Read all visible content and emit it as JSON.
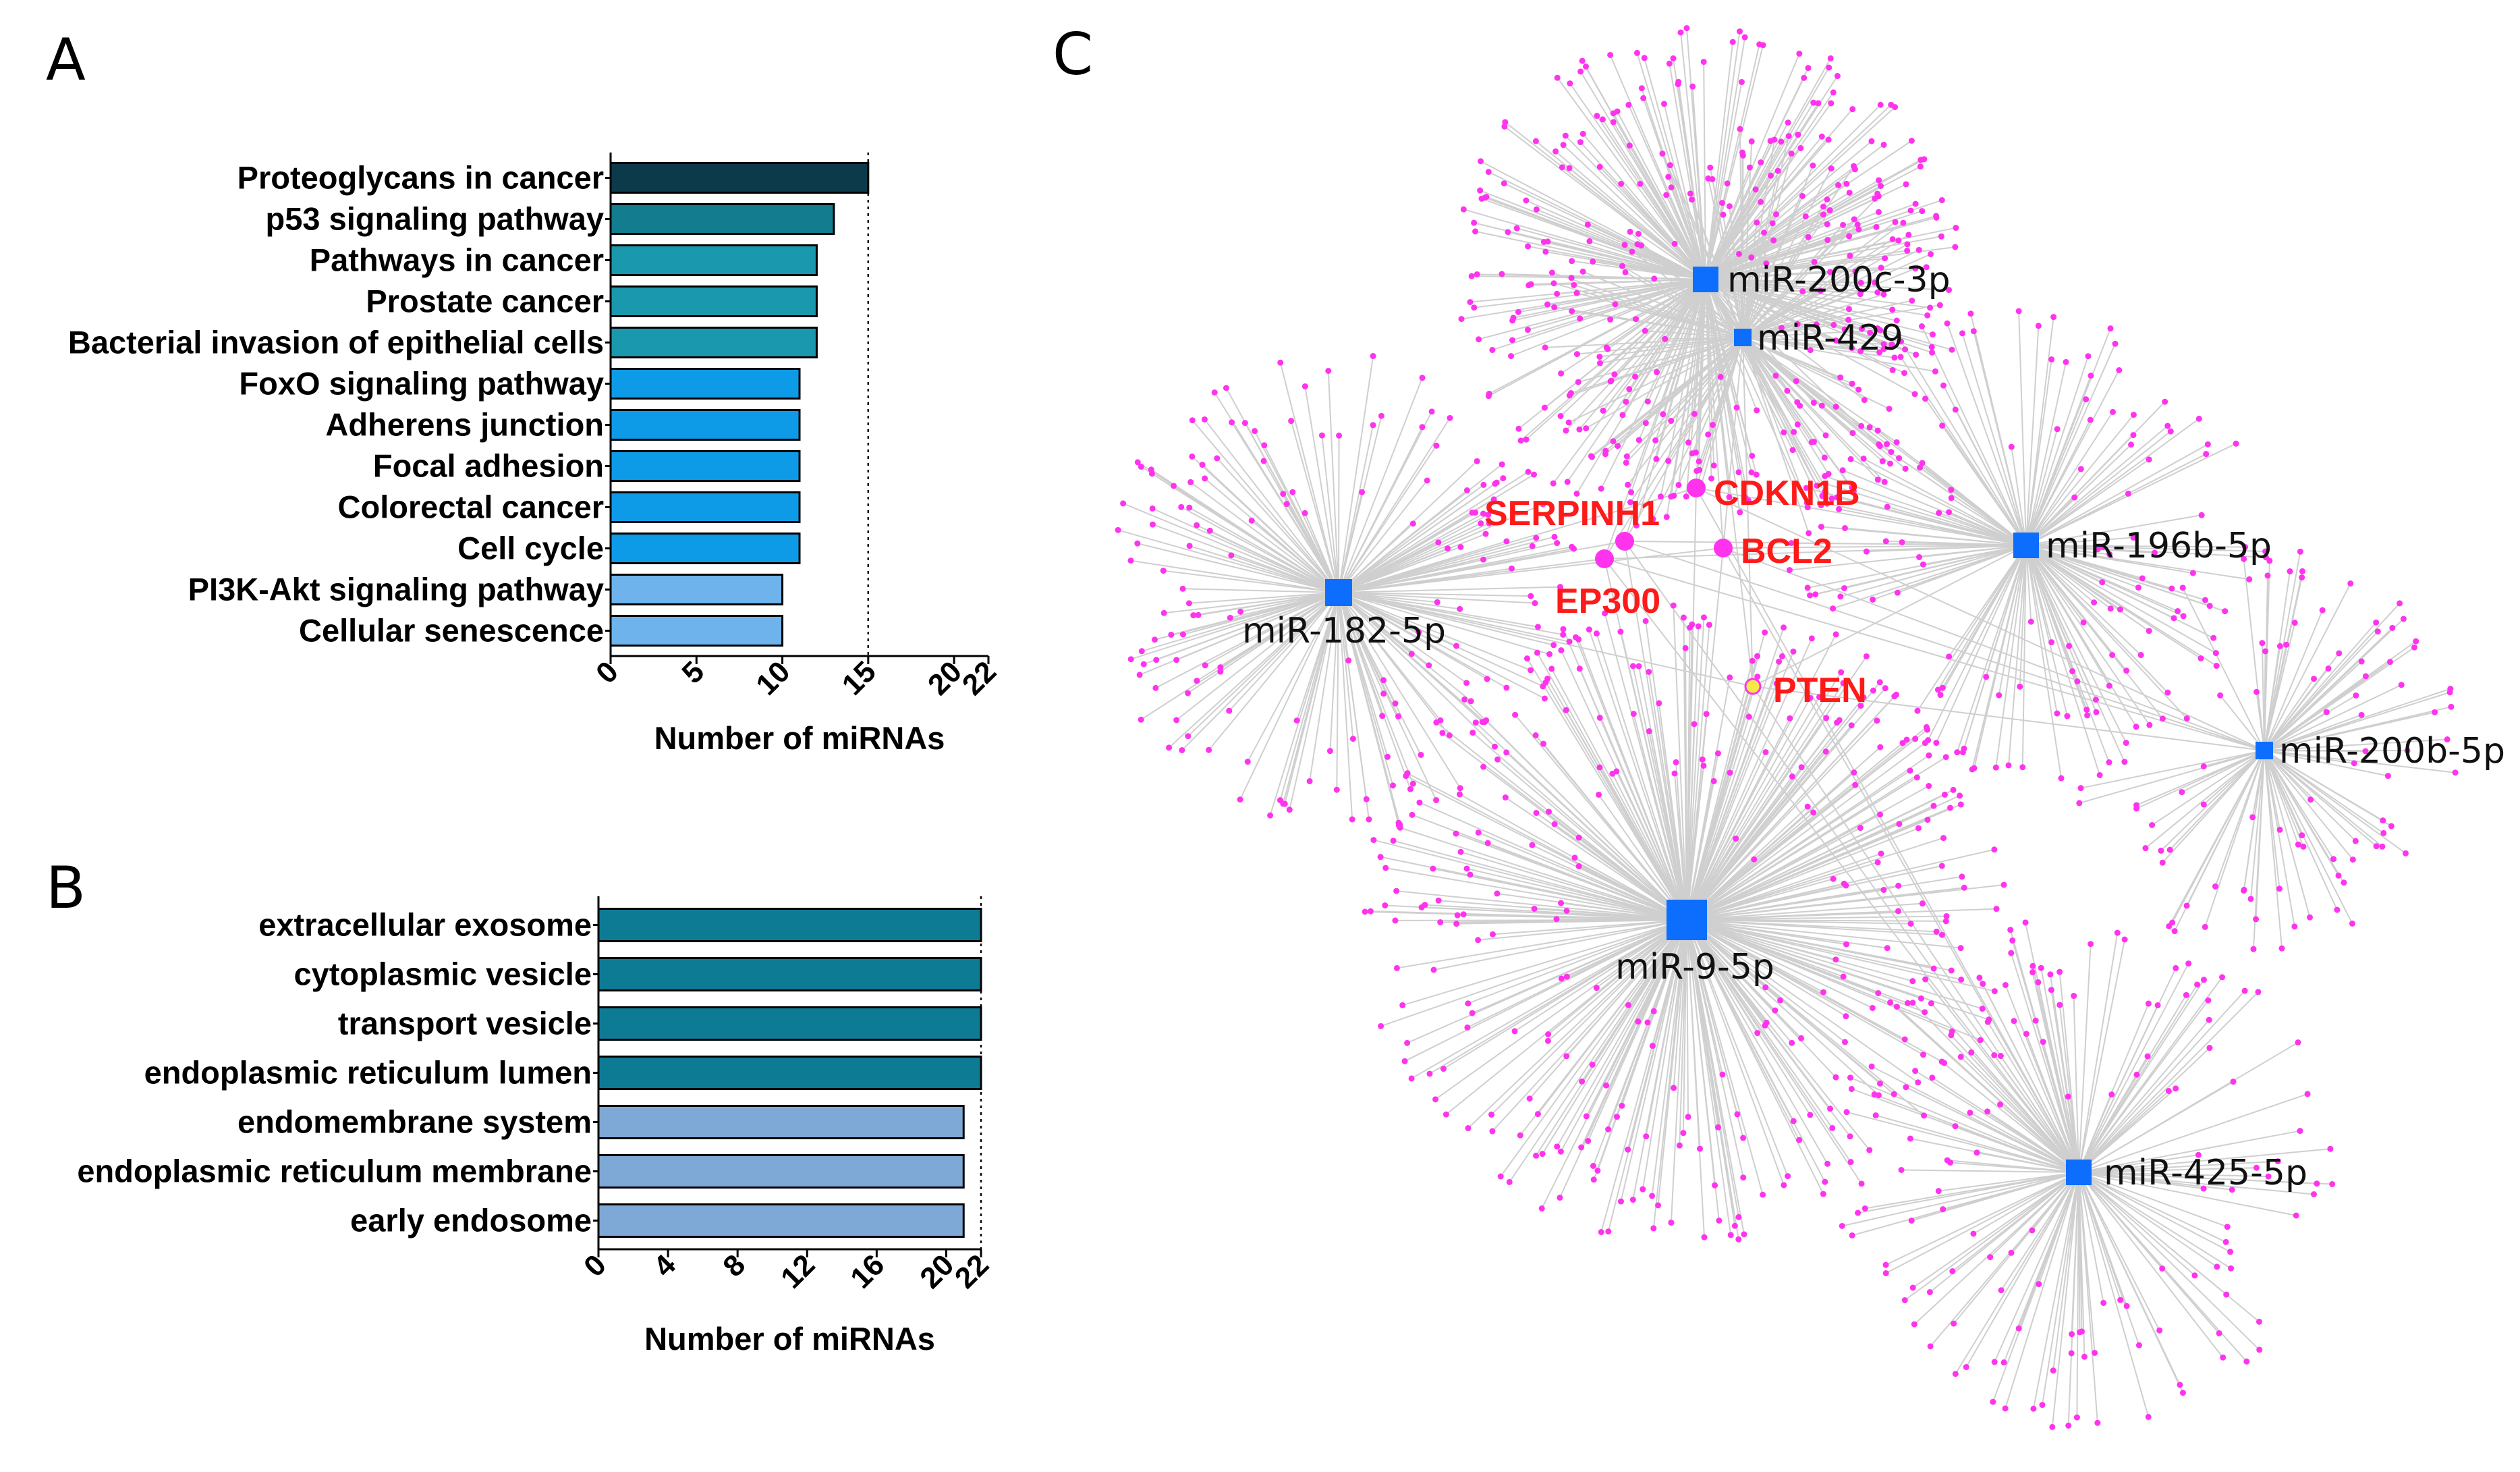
{
  "panel_labels": {
    "a": "A",
    "b": "B",
    "c": "C"
  },
  "chart_data": [
    {
      "panel": "A",
      "type": "bar",
      "orientation": "horizontal",
      "categories": [
        "Proteoglycans in cancer",
        "p53 signaling pathway",
        "Pathways in cancer",
        "Prostate cancer",
        "Bacterial invasion of epithelial cells",
        "FoxO signaling pathway",
        "Adherens junction",
        "Focal adhesion",
        "Colorectal cancer",
        "Cell cycle",
        "PI3K-Akt signaling pathway",
        "Cellular senescence"
      ],
      "values": [
        15,
        13,
        12,
        12,
        12,
        11,
        11,
        11,
        11,
        11,
        10,
        10
      ],
      "colors": [
        "#0d3a4a",
        "#137d8f",
        "#1a98ad",
        "#1a98ad",
        "#1a98ad",
        "#0d9be8",
        "#0d9be8",
        "#0d9be8",
        "#0d9be8",
        "#0d9be8",
        "#6eb3ec",
        "#6eb3ec"
      ],
      "xlabel": "Number of miRNAs",
      "ticks": [
        "0",
        "5",
        "10",
        "15",
        "20",
        "22"
      ],
      "tick_values": [
        0,
        5,
        10,
        15,
        20,
        22
      ],
      "xlim": [
        0,
        22
      ],
      "reference_line": 15
    },
    {
      "panel": "B",
      "type": "bar",
      "orientation": "horizontal",
      "categories": [
        "extracellular exosome",
        "cytoplasmic vesicle",
        "transport vesicle",
        "endoplasmic reticulum lumen",
        "endomembrane system",
        "endoplasmic reticulum membrane",
        "early endosome"
      ],
      "values": [
        22,
        22,
        22,
        22,
        21,
        21,
        21
      ],
      "colors": [
        "#0e7b95",
        "#0e7b95",
        "#0e7b95",
        "#0e7b95",
        "#7ea9d6",
        "#7ea9d6",
        "#7ea9d6"
      ],
      "xlabel": "Number of miRNAs",
      "ticks": [
        "0",
        "4",
        "8",
        "12",
        "16",
        "20",
        "22"
      ],
      "tick_values": [
        0,
        4,
        8,
        12,
        16,
        20,
        22
      ],
      "xlim": [
        0,
        22
      ],
      "reference_line": 22
    },
    {
      "panel": "C",
      "type": "network",
      "mirna_color": "#0d6efd",
      "target_color": "#ff33ee",
      "gene_label_color": "#ff1a1a",
      "mirnas": [
        {
          "name": "miR-200c-3p",
          "size": "medium",
          "targets": 260
        },
        {
          "name": "miR-429",
          "size": "small",
          "targets": 140
        },
        {
          "name": "miR-182-5p",
          "size": "medium",
          "targets": 170
        },
        {
          "name": "miR-196b-5p",
          "size": "medium",
          "targets": 150
        },
        {
          "name": "miR-200b-5p",
          "size": "small",
          "targets": 90
        },
        {
          "name": "miR-9-5p",
          "size": "large",
          "targets": 320
        },
        {
          "name": "miR-425-5p",
          "size": "medium",
          "targets": 150
        }
      ],
      "hub_genes": [
        "SERPINH1",
        "CDKN1B",
        "BCL2",
        "EP300",
        "PTEN"
      ]
    }
  ]
}
